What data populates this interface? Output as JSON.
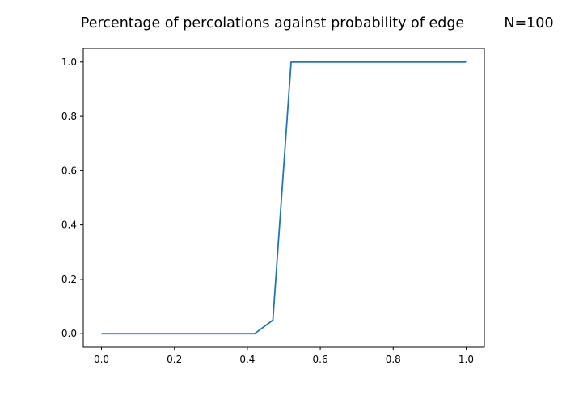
{
  "chart_data": {
    "type": "line",
    "title": "Percentage of percolations against probability of edge",
    "title_right": "N=100",
    "xlabel": "",
    "ylabel": "",
    "xlim": [
      -0.05,
      1.05
    ],
    "ylim": [
      -0.05,
      1.05
    ],
    "xticks": [
      0.0,
      0.2,
      0.4,
      0.6,
      0.8,
      1.0
    ],
    "xtick_labels": [
      "0.0",
      "0.2",
      "0.4",
      "0.6",
      "0.8",
      "1.0"
    ],
    "yticks": [
      0.0,
      0.2,
      0.4,
      0.6,
      0.8,
      1.0
    ],
    "ytick_labels": [
      "0.0",
      "0.2",
      "0.4",
      "0.6",
      "0.8",
      "1.0"
    ],
    "grid": false,
    "series": [
      {
        "color": "#1f77b4",
        "x": [
          0.0,
          0.05,
          0.1,
          0.15,
          0.2,
          0.25,
          0.3,
          0.35,
          0.4,
          0.42,
          0.47,
          0.52,
          0.55,
          0.6,
          0.65,
          0.7,
          0.75,
          0.8,
          0.85,
          0.9,
          0.95,
          1.0
        ],
        "y": [
          0.0,
          0.0,
          0.0,
          0.0,
          0.0,
          0.0,
          0.0,
          0.0,
          0.0,
          0.0,
          0.05,
          1.0,
          1.0,
          1.0,
          1.0,
          1.0,
          1.0,
          1.0,
          1.0,
          1.0,
          1.0,
          1.0
        ]
      }
    ]
  }
}
